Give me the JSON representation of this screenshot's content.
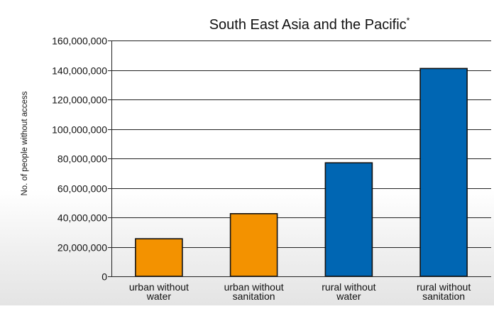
{
  "chart_data": {
    "type": "bar",
    "title": "South East Asia and the Pacific",
    "title_marker": "*",
    "ylabel": "No. of people without access",
    "xlabel": "",
    "ylim": [
      0,
      160000000
    ],
    "ytick_values": [
      0,
      20000000,
      40000000,
      60000000,
      80000000,
      100000000,
      120000000,
      140000000,
      160000000
    ],
    "ytick_labels": [
      "0",
      "20,000,000",
      "40,000,000",
      "60,000,000",
      "80,000,000",
      "100,000,000",
      "120,000,000",
      "140,000,000",
      "160,000,000"
    ],
    "categories": [
      [
        "urban without",
        "water"
      ],
      [
        "urban without",
        "sanitation"
      ],
      [
        "rural without",
        "water"
      ],
      [
        "rural without",
        "sanitation"
      ]
    ],
    "values": [
      25500000,
      42500000,
      77000000,
      141000000
    ],
    "bar_colors": [
      "#f39200",
      "#f39200",
      "#0066b3",
      "#0066b3"
    ],
    "grid": true,
    "legend": "none"
  }
}
